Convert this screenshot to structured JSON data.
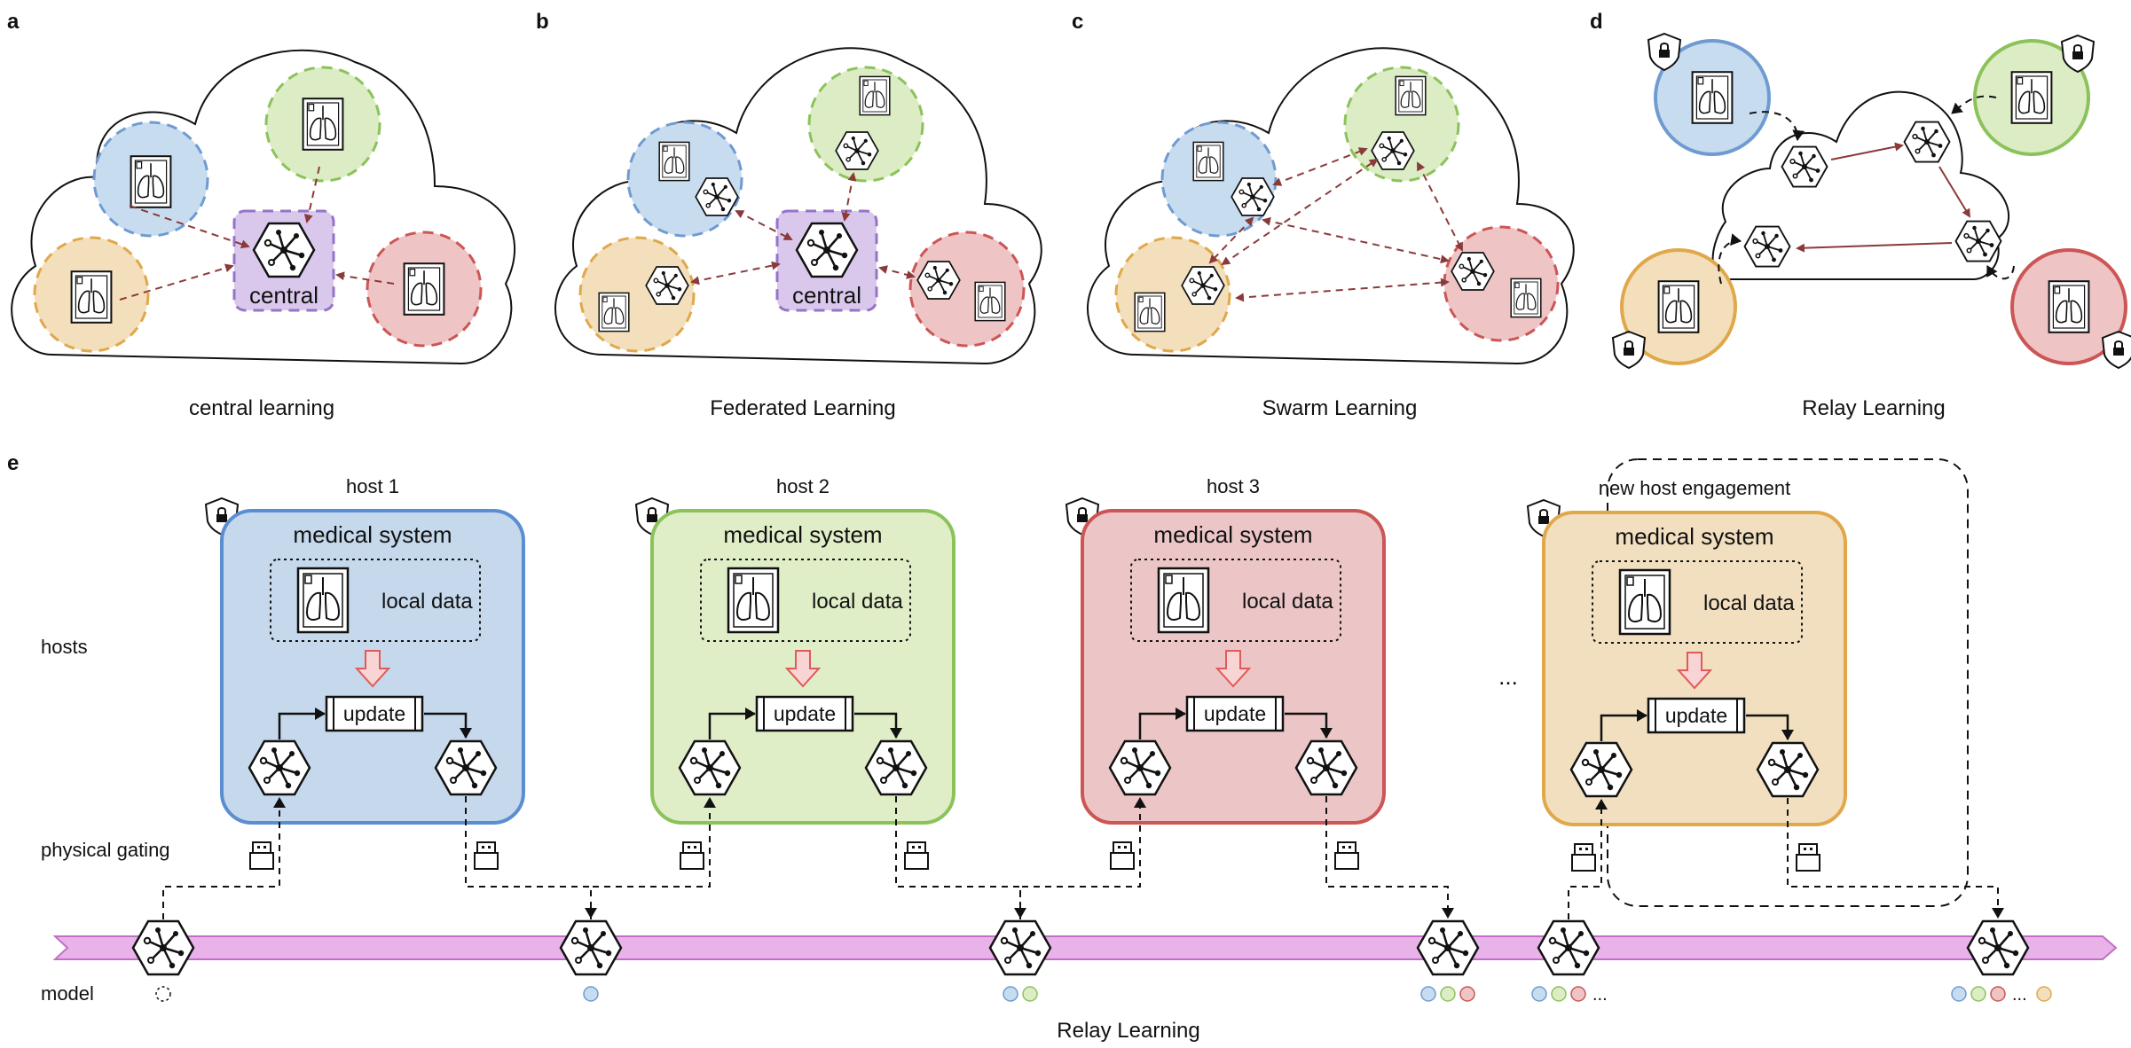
{
  "panels": {
    "a": {
      "letter": "a",
      "caption": "central learning",
      "center_label": "central"
    },
    "b": {
      "letter": "b",
      "caption": "Federated Learning",
      "center_label": "central"
    },
    "c": {
      "letter": "c",
      "caption": "Swarm Learning"
    },
    "d": {
      "letter": "d",
      "caption": "Relay Learning"
    }
  },
  "panel_e": {
    "letter": "e",
    "side_labels": {
      "hosts": "hosts",
      "gating": "physical gating",
      "model": "model"
    },
    "hosts": [
      {
        "title": "host 1",
        "system": "medical system",
        "data": "local data",
        "update": "update",
        "color": "#c5d8ec",
        "stroke": "#5b8ed0"
      },
      {
        "title": "host 2",
        "system": "medical system",
        "data": "local data",
        "update": "update",
        "color": "#e0eec8",
        "stroke": "#8cc25a"
      },
      {
        "title": "host 3",
        "system": "medical system",
        "data": "local data",
        "update": "update",
        "color": "#ecc6c6",
        "stroke": "#cc5555"
      },
      {
        "title": "new host engagement",
        "system": "medical system",
        "data": "local data",
        "update": "update",
        "color": "#f1dfc0",
        "stroke": "#e0a84a"
      }
    ],
    "ellipsis": "...",
    "dots_ellipsis": "...",
    "timeline_label": "Relay Learning",
    "timeline_color": "#e9b3ea"
  },
  "colors": {
    "blue": "#c8dcf0",
    "blue_stroke": "#6f9bd1",
    "green": "#dcedc5",
    "green_stroke": "#8cc25a",
    "red": "#eec4c4",
    "red_stroke": "#cc5555",
    "orange": "#f3dfbb",
    "orange_stroke": "#e0a84a",
    "purple": "#d9c8ec",
    "purple_stroke": "#9673c9",
    "arrow": "#8b3a3a"
  }
}
